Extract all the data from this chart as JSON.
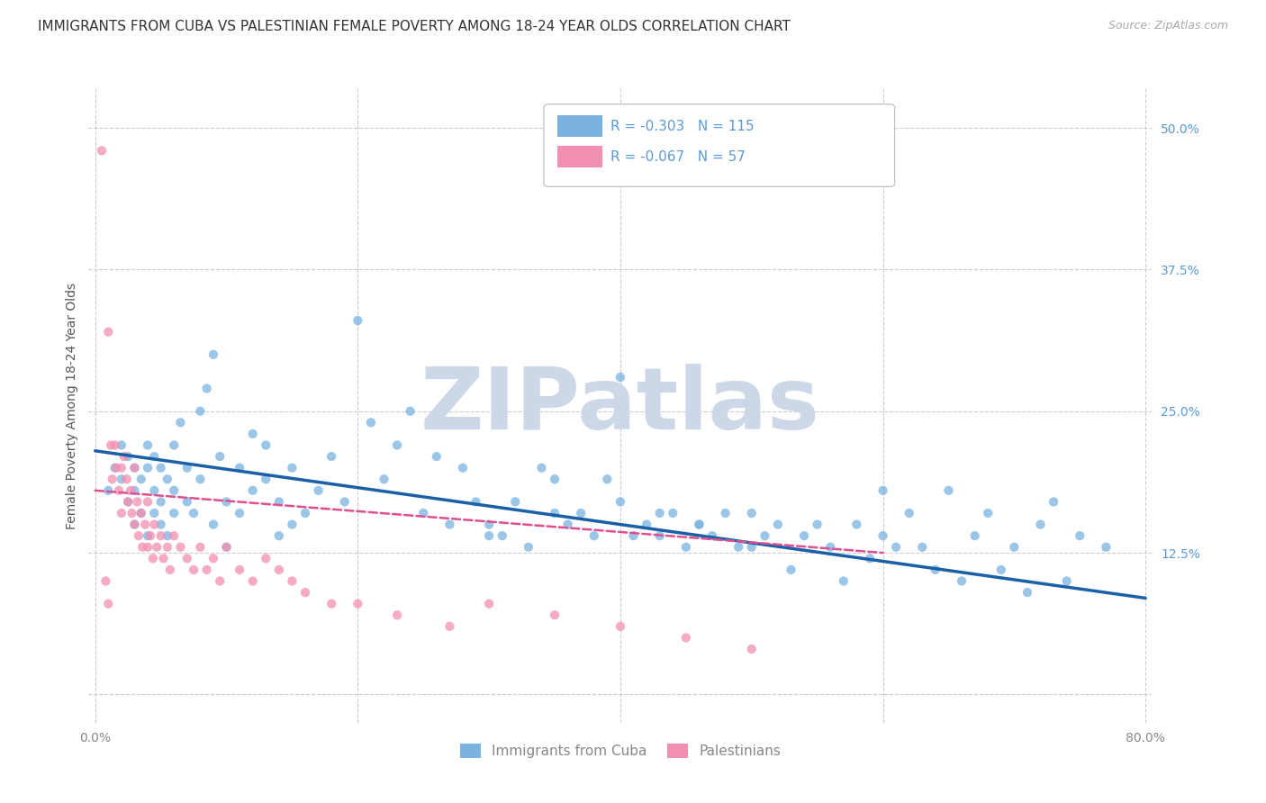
{
  "title": "IMMIGRANTS FROM CUBA VS PALESTINIAN FEMALE POVERTY AMONG 18-24 YEAR OLDS CORRELATION CHART",
  "source": "Source: ZipAtlas.com",
  "ylabel": "Female Poverty Among 18-24 Year Olds",
  "xlim": [
    -0.005,
    0.805
  ],
  "ylim": [
    -0.025,
    0.535
  ],
  "xtick_positions": [
    0.0,
    0.2,
    0.4,
    0.6,
    0.8
  ],
  "xtick_labels": [
    "0.0%",
    "",
    "",
    "",
    "80.0%"
  ],
  "yticks_right": [
    0.0,
    0.125,
    0.25,
    0.375,
    0.5
  ],
  "ytick_labels_right": [
    "",
    "12.5%",
    "25.0%",
    "37.5%",
    "50.0%"
  ],
  "watermark": "ZIPatlas",
  "cuba_x": [
    0.01,
    0.015,
    0.02,
    0.02,
    0.025,
    0.025,
    0.03,
    0.03,
    0.03,
    0.035,
    0.035,
    0.04,
    0.04,
    0.04,
    0.045,
    0.045,
    0.045,
    0.05,
    0.05,
    0.05,
    0.055,
    0.055,
    0.06,
    0.06,
    0.06,
    0.065,
    0.07,
    0.07,
    0.075,
    0.08,
    0.08,
    0.085,
    0.09,
    0.09,
    0.095,
    0.1,
    0.1,
    0.11,
    0.11,
    0.12,
    0.12,
    0.13,
    0.13,
    0.14,
    0.14,
    0.15,
    0.15,
    0.16,
    0.17,
    0.18,
    0.19,
    0.2,
    0.21,
    0.22,
    0.23,
    0.25,
    0.27,
    0.28,
    0.3,
    0.31,
    0.32,
    0.33,
    0.35,
    0.36,
    0.38,
    0.4,
    0.42,
    0.43,
    0.44,
    0.45,
    0.46,
    0.47,
    0.48,
    0.5,
    0.52,
    0.54,
    0.56,
    0.58,
    0.6,
    0.62,
    0.63,
    0.65,
    0.67,
    0.68,
    0.7,
    0.72,
    0.73,
    0.75,
    0.77,
    0.5,
    0.55,
    0.6,
    0.3,
    0.35,
    0.4,
    0.24,
    0.26,
    0.29,
    0.34,
    0.37,
    0.39,
    0.41,
    0.43,
    0.46,
    0.49,
    0.51,
    0.53,
    0.57,
    0.59,
    0.61,
    0.64,
    0.66,
    0.69,
    0.71,
    0.74
  ],
  "cuba_y": [
    0.18,
    0.2,
    0.19,
    0.22,
    0.21,
    0.17,
    0.2,
    0.15,
    0.18,
    0.19,
    0.16,
    0.2,
    0.14,
    0.22,
    0.18,
    0.16,
    0.21,
    0.2,
    0.17,
    0.15,
    0.19,
    0.14,
    0.22,
    0.18,
    0.16,
    0.24,
    0.17,
    0.2,
    0.16,
    0.25,
    0.19,
    0.27,
    0.3,
    0.15,
    0.21,
    0.17,
    0.13,
    0.2,
    0.16,
    0.18,
    0.23,
    0.22,
    0.19,
    0.17,
    0.14,
    0.2,
    0.15,
    0.16,
    0.18,
    0.21,
    0.17,
    0.33,
    0.24,
    0.19,
    0.22,
    0.16,
    0.15,
    0.2,
    0.15,
    0.14,
    0.17,
    0.13,
    0.16,
    0.15,
    0.14,
    0.17,
    0.15,
    0.14,
    0.16,
    0.13,
    0.15,
    0.14,
    0.16,
    0.13,
    0.15,
    0.14,
    0.13,
    0.15,
    0.14,
    0.16,
    0.13,
    0.18,
    0.14,
    0.16,
    0.13,
    0.15,
    0.17,
    0.14,
    0.13,
    0.16,
    0.15,
    0.18,
    0.14,
    0.19,
    0.28,
    0.25,
    0.21,
    0.17,
    0.2,
    0.16,
    0.19,
    0.14,
    0.16,
    0.15,
    0.13,
    0.14,
    0.11,
    0.1,
    0.12,
    0.13,
    0.11,
    0.1,
    0.11,
    0.09,
    0.1
  ],
  "pal_x": [
    0.005,
    0.008,
    0.01,
    0.01,
    0.012,
    0.013,
    0.015,
    0.016,
    0.018,
    0.02,
    0.02,
    0.022,
    0.024,
    0.025,
    0.027,
    0.028,
    0.03,
    0.03,
    0.032,
    0.033,
    0.035,
    0.036,
    0.038,
    0.04,
    0.04,
    0.042,
    0.044,
    0.045,
    0.047,
    0.05,
    0.052,
    0.055,
    0.057,
    0.06,
    0.065,
    0.07,
    0.075,
    0.08,
    0.085,
    0.09,
    0.095,
    0.1,
    0.11,
    0.12,
    0.13,
    0.14,
    0.15,
    0.16,
    0.18,
    0.2,
    0.23,
    0.27,
    0.3,
    0.35,
    0.4,
    0.45,
    0.5
  ],
  "pal_y": [
    0.48,
    0.1,
    0.08,
    0.32,
    0.22,
    0.19,
    0.22,
    0.2,
    0.18,
    0.2,
    0.16,
    0.21,
    0.19,
    0.17,
    0.18,
    0.16,
    0.2,
    0.15,
    0.17,
    0.14,
    0.16,
    0.13,
    0.15,
    0.17,
    0.13,
    0.14,
    0.12,
    0.15,
    0.13,
    0.14,
    0.12,
    0.13,
    0.11,
    0.14,
    0.13,
    0.12,
    0.11,
    0.13,
    0.11,
    0.12,
    0.1,
    0.13,
    0.11,
    0.1,
    0.12,
    0.11,
    0.1,
    0.09,
    0.08,
    0.08,
    0.07,
    0.06,
    0.08,
    0.07,
    0.06,
    0.05,
    0.04
  ],
  "cuba_line_x": [
    0.0,
    0.8
  ],
  "cuba_line_y": [
    0.215,
    0.085
  ],
  "pal_line_x": [
    0.0,
    0.6
  ],
  "pal_line_y": [
    0.18,
    0.125
  ],
  "cuba_dot_color": "#7ab3e0",
  "pal_dot_color": "#f48fb1",
  "cuba_line_color": "#1a5fa8",
  "pal_line_color": "#e05090",
  "scatter_alpha": 0.75,
  "scatter_size": 55,
  "watermark_color": "#ccd8e8",
  "watermark_fontsize": 70,
  "grid_color": "#cccccc",
  "bg_color": "#ffffff",
  "title_fontsize": 11,
  "ylabel_fontsize": 10,
  "tick_fontsize": 10,
  "legend_fontsize": 11,
  "source_fontsize": 9
}
